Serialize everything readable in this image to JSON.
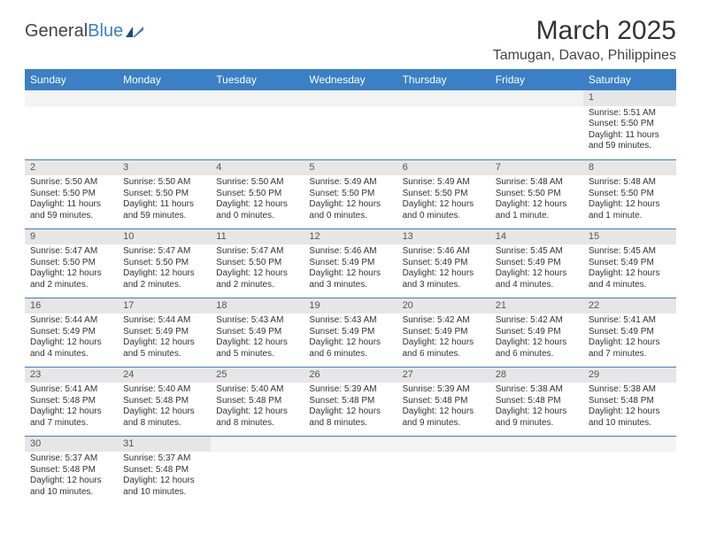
{
  "brand": {
    "name1": "General",
    "name2": "Blue"
  },
  "title": "March 2025",
  "location": "Tamugan, Davao, Philippines",
  "colors": {
    "header_bg": "#3b7fc4",
    "header_text": "#ffffff",
    "daynum_bg": "#e6e6e6",
    "cell_border": "#3b7fc4",
    "text": "#333333"
  },
  "dayNames": [
    "Sunday",
    "Monday",
    "Tuesday",
    "Wednesday",
    "Thursday",
    "Friday",
    "Saturday"
  ],
  "weeks": [
    [
      {
        "empty": true
      },
      {
        "empty": true
      },
      {
        "empty": true
      },
      {
        "empty": true
      },
      {
        "empty": true
      },
      {
        "empty": true
      },
      {
        "n": "1",
        "sunrise": "Sunrise: 5:51 AM",
        "sunset": "Sunset: 5:50 PM",
        "daylight": "Daylight: 11 hours and 59 minutes."
      }
    ],
    [
      {
        "n": "2",
        "sunrise": "Sunrise: 5:50 AM",
        "sunset": "Sunset: 5:50 PM",
        "daylight": "Daylight: 11 hours and 59 minutes."
      },
      {
        "n": "3",
        "sunrise": "Sunrise: 5:50 AM",
        "sunset": "Sunset: 5:50 PM",
        "daylight": "Daylight: 11 hours and 59 minutes."
      },
      {
        "n": "4",
        "sunrise": "Sunrise: 5:50 AM",
        "sunset": "Sunset: 5:50 PM",
        "daylight": "Daylight: 12 hours and 0 minutes."
      },
      {
        "n": "5",
        "sunrise": "Sunrise: 5:49 AM",
        "sunset": "Sunset: 5:50 PM",
        "daylight": "Daylight: 12 hours and 0 minutes."
      },
      {
        "n": "6",
        "sunrise": "Sunrise: 5:49 AM",
        "sunset": "Sunset: 5:50 PM",
        "daylight": "Daylight: 12 hours and 0 minutes."
      },
      {
        "n": "7",
        "sunrise": "Sunrise: 5:48 AM",
        "sunset": "Sunset: 5:50 PM",
        "daylight": "Daylight: 12 hours and 1 minute."
      },
      {
        "n": "8",
        "sunrise": "Sunrise: 5:48 AM",
        "sunset": "Sunset: 5:50 PM",
        "daylight": "Daylight: 12 hours and 1 minute."
      }
    ],
    [
      {
        "n": "9",
        "sunrise": "Sunrise: 5:47 AM",
        "sunset": "Sunset: 5:50 PM",
        "daylight": "Daylight: 12 hours and 2 minutes."
      },
      {
        "n": "10",
        "sunrise": "Sunrise: 5:47 AM",
        "sunset": "Sunset: 5:50 PM",
        "daylight": "Daylight: 12 hours and 2 minutes."
      },
      {
        "n": "11",
        "sunrise": "Sunrise: 5:47 AM",
        "sunset": "Sunset: 5:50 PM",
        "daylight": "Daylight: 12 hours and 2 minutes."
      },
      {
        "n": "12",
        "sunrise": "Sunrise: 5:46 AM",
        "sunset": "Sunset: 5:49 PM",
        "daylight": "Daylight: 12 hours and 3 minutes."
      },
      {
        "n": "13",
        "sunrise": "Sunrise: 5:46 AM",
        "sunset": "Sunset: 5:49 PM",
        "daylight": "Daylight: 12 hours and 3 minutes."
      },
      {
        "n": "14",
        "sunrise": "Sunrise: 5:45 AM",
        "sunset": "Sunset: 5:49 PM",
        "daylight": "Daylight: 12 hours and 4 minutes."
      },
      {
        "n": "15",
        "sunrise": "Sunrise: 5:45 AM",
        "sunset": "Sunset: 5:49 PM",
        "daylight": "Daylight: 12 hours and 4 minutes."
      }
    ],
    [
      {
        "n": "16",
        "sunrise": "Sunrise: 5:44 AM",
        "sunset": "Sunset: 5:49 PM",
        "daylight": "Daylight: 12 hours and 4 minutes."
      },
      {
        "n": "17",
        "sunrise": "Sunrise: 5:44 AM",
        "sunset": "Sunset: 5:49 PM",
        "daylight": "Daylight: 12 hours and 5 minutes."
      },
      {
        "n": "18",
        "sunrise": "Sunrise: 5:43 AM",
        "sunset": "Sunset: 5:49 PM",
        "daylight": "Daylight: 12 hours and 5 minutes."
      },
      {
        "n": "19",
        "sunrise": "Sunrise: 5:43 AM",
        "sunset": "Sunset: 5:49 PM",
        "daylight": "Daylight: 12 hours and 6 minutes."
      },
      {
        "n": "20",
        "sunrise": "Sunrise: 5:42 AM",
        "sunset": "Sunset: 5:49 PM",
        "daylight": "Daylight: 12 hours and 6 minutes."
      },
      {
        "n": "21",
        "sunrise": "Sunrise: 5:42 AM",
        "sunset": "Sunset: 5:49 PM",
        "daylight": "Daylight: 12 hours and 6 minutes."
      },
      {
        "n": "22",
        "sunrise": "Sunrise: 5:41 AM",
        "sunset": "Sunset: 5:49 PM",
        "daylight": "Daylight: 12 hours and 7 minutes."
      }
    ],
    [
      {
        "n": "23",
        "sunrise": "Sunrise: 5:41 AM",
        "sunset": "Sunset: 5:48 PM",
        "daylight": "Daylight: 12 hours and 7 minutes."
      },
      {
        "n": "24",
        "sunrise": "Sunrise: 5:40 AM",
        "sunset": "Sunset: 5:48 PM",
        "daylight": "Daylight: 12 hours and 8 minutes."
      },
      {
        "n": "25",
        "sunrise": "Sunrise: 5:40 AM",
        "sunset": "Sunset: 5:48 PM",
        "daylight": "Daylight: 12 hours and 8 minutes."
      },
      {
        "n": "26",
        "sunrise": "Sunrise: 5:39 AM",
        "sunset": "Sunset: 5:48 PM",
        "daylight": "Daylight: 12 hours and 8 minutes."
      },
      {
        "n": "27",
        "sunrise": "Sunrise: 5:39 AM",
        "sunset": "Sunset: 5:48 PM",
        "daylight": "Daylight: 12 hours and 9 minutes."
      },
      {
        "n": "28",
        "sunrise": "Sunrise: 5:38 AM",
        "sunset": "Sunset: 5:48 PM",
        "daylight": "Daylight: 12 hours and 9 minutes."
      },
      {
        "n": "29",
        "sunrise": "Sunrise: 5:38 AM",
        "sunset": "Sunset: 5:48 PM",
        "daylight": "Daylight: 12 hours and 10 minutes."
      }
    ],
    [
      {
        "n": "30",
        "sunrise": "Sunrise: 5:37 AM",
        "sunset": "Sunset: 5:48 PM",
        "daylight": "Daylight: 12 hours and 10 minutes."
      },
      {
        "n": "31",
        "sunrise": "Sunrise: 5:37 AM",
        "sunset": "Sunset: 5:48 PM",
        "daylight": "Daylight: 12 hours and 10 minutes."
      },
      {
        "empty": true
      },
      {
        "empty": true
      },
      {
        "empty": true
      },
      {
        "empty": true
      },
      {
        "empty": true
      }
    ]
  ]
}
